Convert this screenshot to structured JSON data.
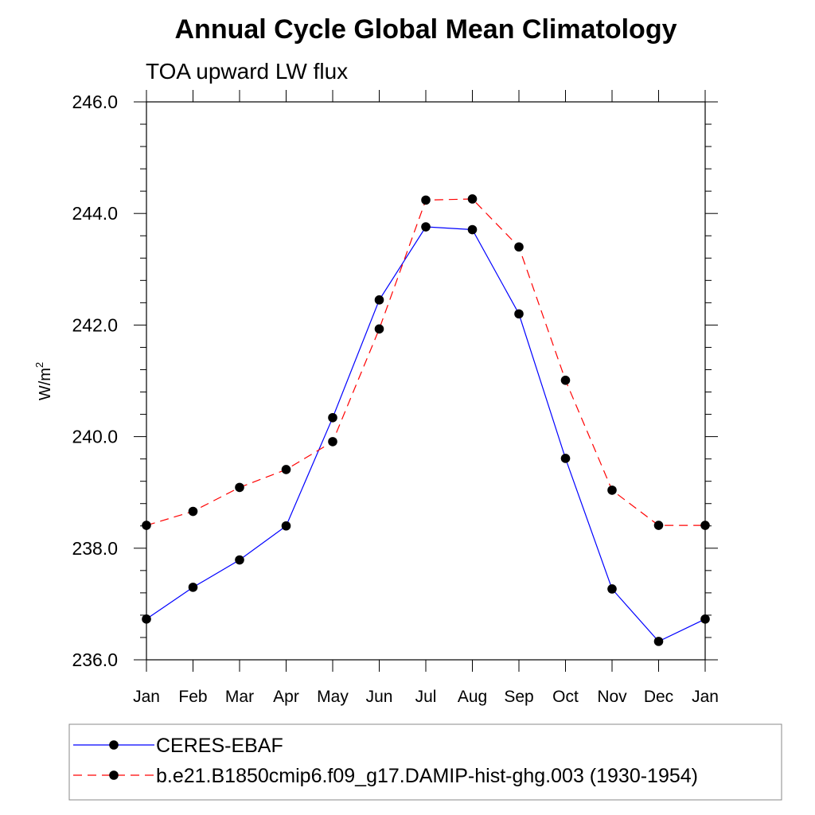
{
  "chart_data": {
    "type": "line",
    "title": "Annual Cycle Global Mean Climatology",
    "subtitle": "TOA upward LW flux",
    "ylabel": "W/m",
    "ylabel_sup": "2",
    "xlabel": "",
    "categories": [
      "Jan",
      "Feb",
      "Mar",
      "Apr",
      "May",
      "Jun",
      "Jul",
      "Aug",
      "Sep",
      "Oct",
      "Nov",
      "Dec",
      "Jan"
    ],
    "ylim": [
      236.0,
      246.0
    ],
    "yticks": [
      "236.0",
      "238.0",
      "240.0",
      "242.0",
      "244.0",
      "246.0"
    ],
    "grid": false,
    "legend_position": "bottom",
    "series": [
      {
        "name": "CERES-EBAF",
        "color": "#0000ff",
        "dash": "solid",
        "marker": "filled-circle",
        "values": [
          236.73,
          237.3,
          237.79,
          238.4,
          240.34,
          242.45,
          243.76,
          243.71,
          242.2,
          239.61,
          237.27,
          236.33,
          236.73
        ]
      },
      {
        "name": "b.e21.B1850cmip6.f09_g17.DAMIP-hist-ghg.003 (1930-1954)",
        "color": "#ff0000",
        "dash": "dashed",
        "marker": "filled-circle",
        "values": [
          238.41,
          238.66,
          239.09,
          239.41,
          239.91,
          241.93,
          244.24,
          244.26,
          243.4,
          241.01,
          239.04,
          238.41,
          238.41
        ]
      }
    ]
  }
}
